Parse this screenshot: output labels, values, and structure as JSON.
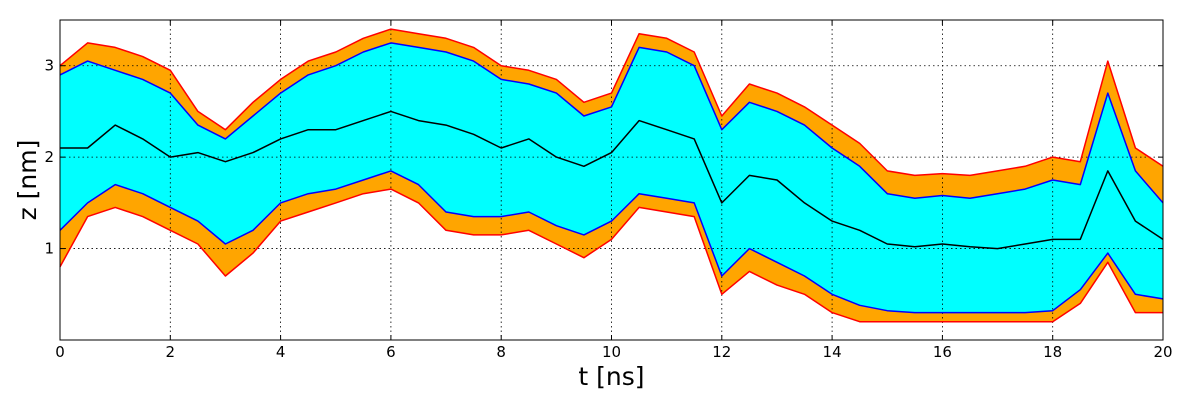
{
  "chart_data": {
    "type": "area",
    "title": "",
    "xlabel": "t [ns]",
    "ylabel": "z [nm]",
    "xlim": [
      0,
      20
    ],
    "ylim": [
      0,
      3.5
    ],
    "xticks": [
      0,
      2,
      4,
      6,
      8,
      10,
      12,
      14,
      16,
      18,
      20
    ],
    "yticks": [
      1,
      2,
      3
    ],
    "grid": true,
    "legend": "none",
    "x": [
      0,
      0.5,
      1,
      1.5,
      2,
      2.5,
      3,
      3.5,
      4,
      4.5,
      5,
      5.5,
      6,
      6.5,
      7,
      7.5,
      8,
      8.5,
      9,
      9.5,
      10,
      10.5,
      11,
      11.5,
      12,
      12.5,
      13,
      13.5,
      14,
      14.5,
      15,
      15.5,
      16,
      16.5,
      17,
      17.5,
      18,
      18.5,
      19,
      19.5,
      20
    ],
    "series": [
      {
        "name": "",
        "role": "outer-upper",
        "color": "#ff0000",
        "values": [
          3.0,
          3.25,
          3.2,
          3.1,
          2.95,
          2.5,
          2.3,
          2.6,
          2.85,
          3.05,
          3.15,
          3.3,
          3.4,
          3.35,
          3.3,
          3.2,
          3.0,
          2.95,
          2.85,
          2.6,
          2.7,
          3.35,
          3.3,
          3.15,
          2.45,
          2.8,
          2.7,
          2.55,
          2.35,
          2.15,
          1.85,
          1.8,
          1.82,
          1.8,
          1.85,
          1.9,
          2.0,
          1.95,
          3.05,
          2.1,
          1.9
        ]
      },
      {
        "name": "",
        "role": "inner-upper",
        "color": "#0000ff",
        "values": [
          2.9,
          3.05,
          2.95,
          2.85,
          2.7,
          2.35,
          2.2,
          2.45,
          2.7,
          2.9,
          3.0,
          3.15,
          3.25,
          3.2,
          3.15,
          3.05,
          2.85,
          2.8,
          2.7,
          2.45,
          2.55,
          3.2,
          3.15,
          3.0,
          2.3,
          2.6,
          2.5,
          2.35,
          2.1,
          1.9,
          1.6,
          1.55,
          1.58,
          1.55,
          1.6,
          1.65,
          1.75,
          1.7,
          2.7,
          1.85,
          1.5
        ]
      },
      {
        "name": "",
        "role": "center",
        "color": "#000000",
        "values": [
          2.1,
          2.1,
          2.35,
          2.2,
          2.0,
          2.05,
          1.95,
          2.05,
          2.2,
          2.3,
          2.3,
          2.4,
          2.5,
          2.4,
          2.35,
          2.25,
          2.1,
          2.2,
          2.0,
          1.9,
          2.05,
          2.4,
          2.3,
          2.2,
          1.5,
          1.8,
          1.75,
          1.5,
          1.3,
          1.2,
          1.05,
          1.02,
          1.05,
          1.02,
          1.0,
          1.05,
          1.1,
          1.1,
          1.85,
          1.3,
          1.1
        ]
      },
      {
        "name": "",
        "role": "inner-lower",
        "color": "#0000ff",
        "values": [
          1.2,
          1.5,
          1.7,
          1.6,
          1.45,
          1.3,
          1.05,
          1.2,
          1.5,
          1.6,
          1.65,
          1.75,
          1.85,
          1.7,
          1.4,
          1.35,
          1.35,
          1.4,
          1.25,
          1.15,
          1.3,
          1.6,
          1.55,
          1.5,
          0.7,
          1.0,
          0.85,
          0.7,
          0.5,
          0.38,
          0.32,
          0.3,
          0.3,
          0.3,
          0.3,
          0.3,
          0.32,
          0.55,
          0.95,
          0.5,
          0.45
        ]
      },
      {
        "name": "",
        "role": "outer-lower",
        "color": "#ff0000",
        "values": [
          0.8,
          1.35,
          1.45,
          1.35,
          1.2,
          1.05,
          0.7,
          0.95,
          1.3,
          1.4,
          1.5,
          1.6,
          1.65,
          1.5,
          1.2,
          1.15,
          1.15,
          1.2,
          1.05,
          0.9,
          1.1,
          1.45,
          1.4,
          1.35,
          0.5,
          0.75,
          0.6,
          0.5,
          0.3,
          0.2,
          0.2,
          0.2,
          0.2,
          0.2,
          0.2,
          0.2,
          0.2,
          0.4,
          0.85,
          0.3,
          0.3
        ]
      }
    ],
    "fills": [
      {
        "between": [
          "outer-upper",
          "outer-lower"
        ],
        "color": "#ffa500"
      },
      {
        "between": [
          "inner-upper",
          "inner-lower"
        ],
        "color": "#00ffff"
      }
    ]
  }
}
